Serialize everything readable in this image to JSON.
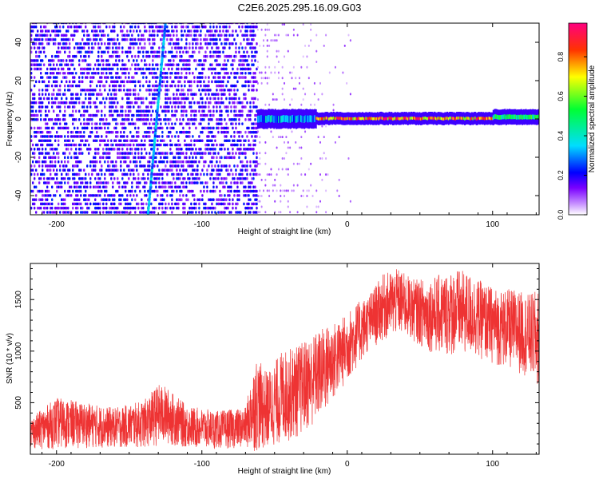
{
  "title": "C2E6.2025.295.16.09.G03",
  "chart_data": [
    {
      "type": "heatmap",
      "xlabel": "Height of straight line (km)",
      "ylabel": "Frequency (Hz)",
      "xlim": [
        -218,
        132
      ],
      "ylim": [
        -50,
        50
      ],
      "xticks": [
        -200,
        -100,
        0,
        100
      ],
      "yticks": [
        -40,
        -20,
        0,
        20,
        40
      ],
      "colorbar": {
        "label": "Normalized spectral amplitude",
        "range": [
          0,
          1
        ],
        "ticks": [
          "0.0",
          "0.2",
          "0.4",
          "0.6",
          "0.8"
        ],
        "colors": [
          "#ffffff",
          "#9b30ff",
          "#0000ff",
          "#00e5ff",
          "#00ff00",
          "#ffff00",
          "#ff0000",
          "#ff0080"
        ]
      },
      "regions": [
        {
          "x": [
            -218,
            -62
          ],
          "freq": [
            -50,
            50
          ],
          "amplitude": [
            0.1,
            0.25
          ],
          "description_label": "noise"
        },
        {
          "x": [
            -62,
            -22
          ],
          "freq": [
            -3,
            3
          ],
          "amplitude": [
            0.2,
            0.45
          ]
        },
        {
          "x": [
            -22,
            100
          ],
          "freq": [
            -1,
            1.5
          ],
          "amplitude": [
            0.6,
            1.0
          ]
        },
        {
          "x": [
            100,
            132
          ],
          "freq": [
            -1,
            3
          ],
          "amplitude": [
            0.4,
            0.6
          ]
        }
      ],
      "streak": {
        "x_start": -137,
        "x_end": -125,
        "freq_start": -50,
        "freq_end": 50
      }
    },
    {
      "type": "line",
      "xlabel": "Height of straight line (km)",
      "ylabel": "SNR (10 * v/v)",
      "xlim": [
        -218,
        132
      ],
      "ylim": [
        0,
        1850
      ],
      "xticks": [
        -200,
        -100,
        0,
        100
      ],
      "yticks": [
        500,
        1000,
        1500
      ],
      "color": "#ee3333",
      "series": [
        {
          "x": [
            -218,
            -200,
            -180,
            -160,
            -140,
            -130,
            -125,
            -110,
            -90,
            -70,
            -63,
            -55,
            -45,
            -35,
            -25,
            -15,
            -5,
            5,
            15,
            25,
            35,
            45,
            55,
            65,
            75,
            85,
            95,
            105,
            115,
            125,
            132
          ],
          "y_low": [
            50,
            50,
            60,
            60,
            60,
            80,
            90,
            60,
            50,
            60,
            20,
            50,
            100,
            150,
            250,
            400,
            600,
            800,
            1000,
            1100,
            1150,
            1100,
            1000,
            950,
            950,
            950,
            900,
            850,
            800,
            750,
            600
          ],
          "y_high": [
            350,
            550,
            500,
            450,
            520,
            680,
            660,
            470,
            420,
            450,
            950,
            800,
            1000,
            1050,
            1150,
            1250,
            1300,
            1450,
            1550,
            1750,
            1800,
            1700,
            1700,
            1750,
            1800,
            1750,
            1650,
            1600,
            1600,
            1550,
            1600
          ]
        }
      ]
    }
  ]
}
